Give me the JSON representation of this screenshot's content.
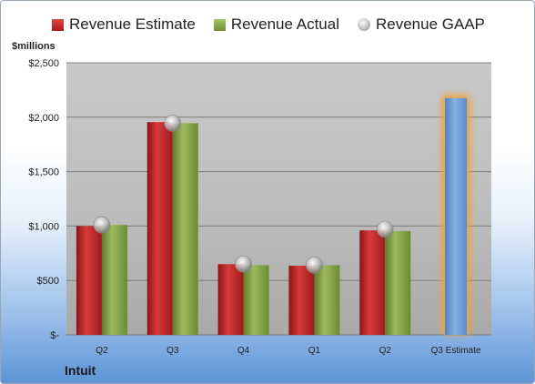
{
  "chart_data": {
    "type": "bar",
    "title": "",
    "unit_label": "$millions",
    "company": "Intuit",
    "categories": [
      "Q2",
      "Q3",
      "Q4",
      "Q1",
      "Q2",
      "Q3 Estimate"
    ],
    "ylim": [
      0,
      2500
    ],
    "y_ticks": [
      {
        "value": 0,
        "label": "$-"
      },
      {
        "value": 500,
        "label": "$500"
      },
      {
        "value": 1000,
        "label": "$1,000"
      },
      {
        "value": 1500,
        "label": "$1,500"
      },
      {
        "value": 2000,
        "label": "$2,000"
      },
      {
        "value": 2500,
        "label": "$2,500"
      }
    ],
    "grid": true,
    "legend_position": "top",
    "series": [
      {
        "name": "Revenue Estimate",
        "values": [
          1000,
          1955,
          650,
          635,
          960,
          null
        ],
        "color": "#c42a2a"
      },
      {
        "name": "Revenue Actual",
        "values": [
          1010,
          1945,
          640,
          640,
          955,
          null
        ],
        "color": "#8aa84a"
      },
      {
        "name": "Revenue GAAP",
        "values": [
          1010,
          1945,
          650,
          640,
          970,
          null
        ],
        "color": "#b0b0b0"
      }
    ],
    "estimate": {
      "category": "Q3 Estimate",
      "value": 2175,
      "color": "#6c9fd6",
      "glow": "#f5a030"
    }
  }
}
